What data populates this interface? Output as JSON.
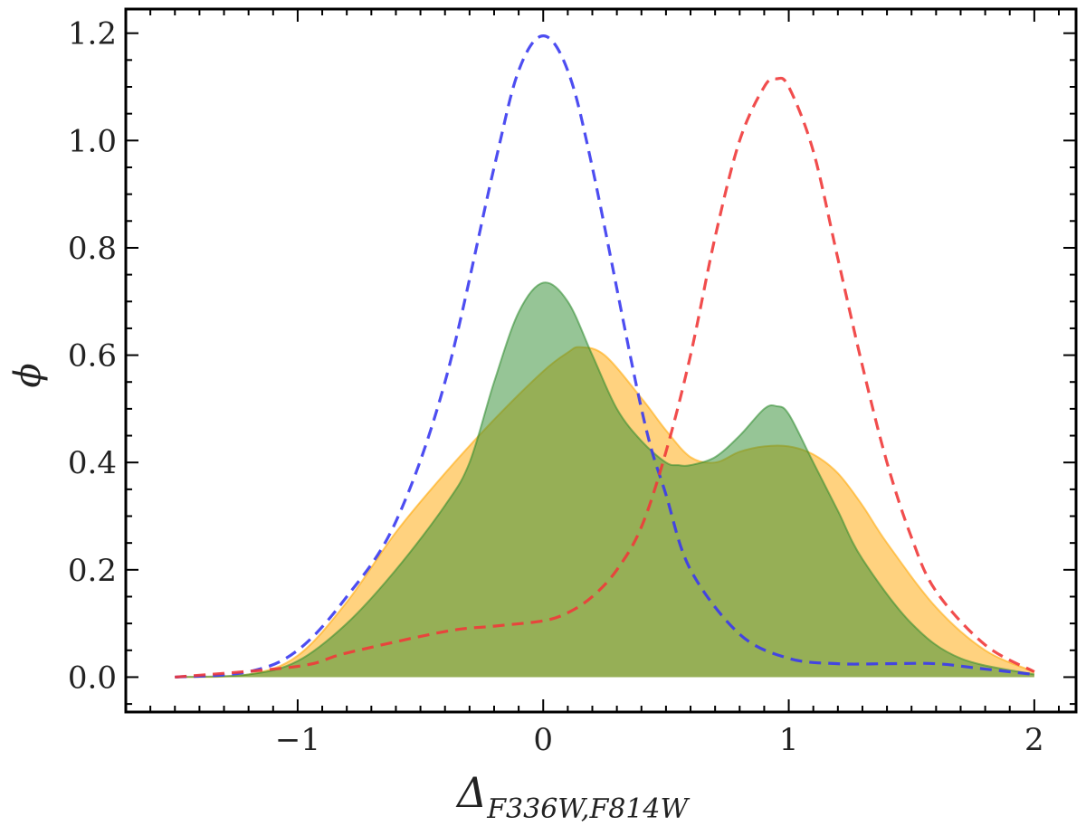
{
  "chart_data": {
    "type": "area",
    "xlabel": "Δ",
    "xlabel_sub": "F336W,F814W",
    "ylabel": "ϕ",
    "xlim": [
      -1.7,
      2.17
    ],
    "ylim": [
      -0.065,
      1.245
    ],
    "xticks": [
      -1,
      0,
      1,
      2
    ],
    "xtick_labels": [
      "−1",
      "0",
      "1",
      "2"
    ],
    "yticks": [
      0.0,
      0.2,
      0.4,
      0.6,
      0.8,
      1.0,
      1.2
    ],
    "ytick_labels": [
      "0.0",
      "0.2",
      "0.4",
      "0.6",
      "0.8",
      "1.0",
      "1.2"
    ],
    "grid": false,
    "series": [
      {
        "style": "filled",
        "color": "#ffa500",
        "x": [
          -1.5,
          -1.2,
          -1.0,
          -0.8,
          -0.6,
          -0.4,
          -0.2,
          0.0,
          0.1,
          0.15,
          0.25,
          0.4,
          0.5,
          0.6,
          0.7,
          0.8,
          0.9,
          1.0,
          1.1,
          1.2,
          1.3,
          1.4,
          1.6,
          1.8,
          2.0
        ],
        "y": [
          0.0,
          0.005,
          0.04,
          0.14,
          0.27,
          0.38,
          0.48,
          0.57,
          0.605,
          0.615,
          0.6,
          0.52,
          0.46,
          0.41,
          0.4,
          0.42,
          0.43,
          0.43,
          0.415,
          0.38,
          0.32,
          0.25,
          0.13,
          0.05,
          0.01
        ]
      },
      {
        "style": "filled",
        "color": "#2e8b2e",
        "x": [
          -1.5,
          -1.2,
          -1.0,
          -0.8,
          -0.6,
          -0.4,
          -0.3,
          -0.2,
          -0.1,
          0.0,
          0.1,
          0.2,
          0.3,
          0.4,
          0.5,
          0.55,
          0.6,
          0.7,
          0.8,
          0.9,
          0.95,
          1.0,
          1.1,
          1.2,
          1.3,
          1.5,
          1.7,
          2.0
        ],
        "y": [
          0.0,
          0.005,
          0.03,
          0.1,
          0.2,
          0.32,
          0.4,
          0.55,
          0.68,
          0.735,
          0.7,
          0.6,
          0.5,
          0.44,
          0.4,
          0.395,
          0.395,
          0.41,
          0.45,
          0.5,
          0.505,
          0.49,
          0.4,
          0.31,
          0.22,
          0.1,
          0.035,
          0.005
        ]
      },
      {
        "style": "dashed",
        "color": "#3a3af0",
        "x": [
          -1.5,
          -1.2,
          -1.0,
          -0.8,
          -0.6,
          -0.4,
          -0.2,
          -0.1,
          0.0,
          0.1,
          0.2,
          0.4,
          0.5,
          0.6,
          0.8,
          1.0,
          1.2,
          1.4,
          1.6,
          1.8,
          2.0
        ],
        "y": [
          0.0,
          0.01,
          0.05,
          0.15,
          0.29,
          0.55,
          0.95,
          1.13,
          1.195,
          1.13,
          0.95,
          0.5,
          0.34,
          0.2,
          0.08,
          0.035,
          0.025,
          0.025,
          0.025,
          0.015,
          0.005
        ]
      },
      {
        "style": "dashed",
        "color": "#f03a3a",
        "x": [
          -1.5,
          -1.0,
          -0.8,
          -0.4,
          -0.2,
          0.0,
          0.1,
          0.2,
          0.3,
          0.4,
          0.5,
          0.6,
          0.7,
          0.8,
          0.9,
          0.95,
          1.0,
          1.1,
          1.2,
          1.3,
          1.4,
          1.5,
          1.6,
          1.8,
          2.0
        ],
        "y": [
          0.0,
          0.02,
          0.045,
          0.085,
          0.095,
          0.105,
          0.12,
          0.15,
          0.2,
          0.28,
          0.42,
          0.6,
          0.82,
          1.0,
          1.1,
          1.115,
          1.1,
          0.98,
          0.78,
          0.58,
          0.4,
          0.26,
          0.16,
          0.06,
          0.01
        ]
      }
    ]
  }
}
